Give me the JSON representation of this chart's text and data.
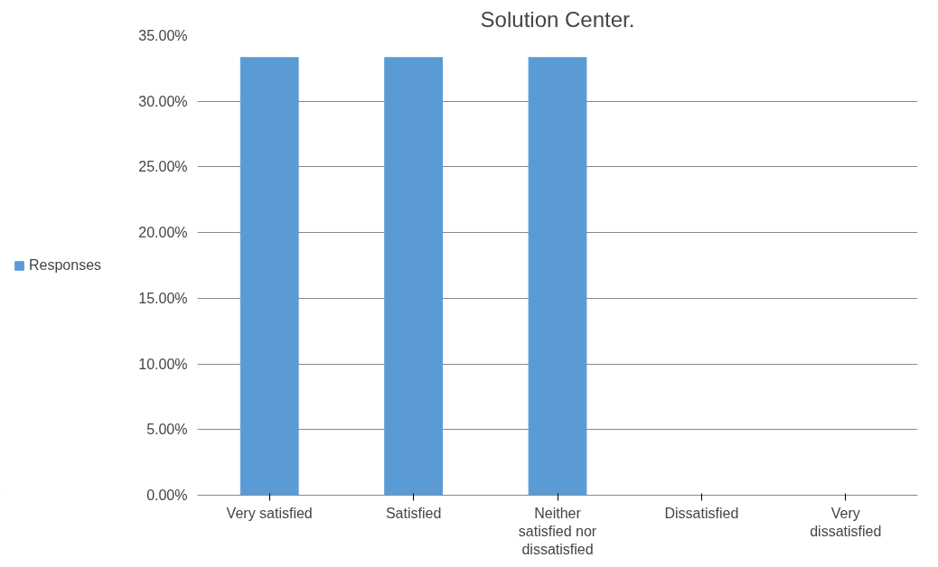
{
  "chart_data": {
    "type": "bar",
    "title": "Solution Center.",
    "categories": [
      "Very satisfied",
      "Satisfied",
      "Neither satisfied nor dissatisfied",
      "Dissatisfied",
      "Very dissatisfied"
    ],
    "series": [
      {
        "name": "Responses",
        "color": "#5b9bd5",
        "values": [
          33.33,
          33.33,
          33.33,
          0,
          0
        ]
      }
    ],
    "ylim": [
      0,
      35
    ],
    "yticks": [
      {
        "value": 0,
        "label": "0.00%"
      },
      {
        "value": 5,
        "label": "5.00%"
      },
      {
        "value": 10,
        "label": "10.00%"
      },
      {
        "value": 15,
        "label": "15.00%"
      },
      {
        "value": 20,
        "label": "20.00%"
      },
      {
        "value": 25,
        "label": "25.00%"
      },
      {
        "value": 30,
        "label": "30.00%"
      },
      {
        "value": 35,
        "label": "35.00%"
      }
    ],
    "grid": "y",
    "legend": "left"
  }
}
